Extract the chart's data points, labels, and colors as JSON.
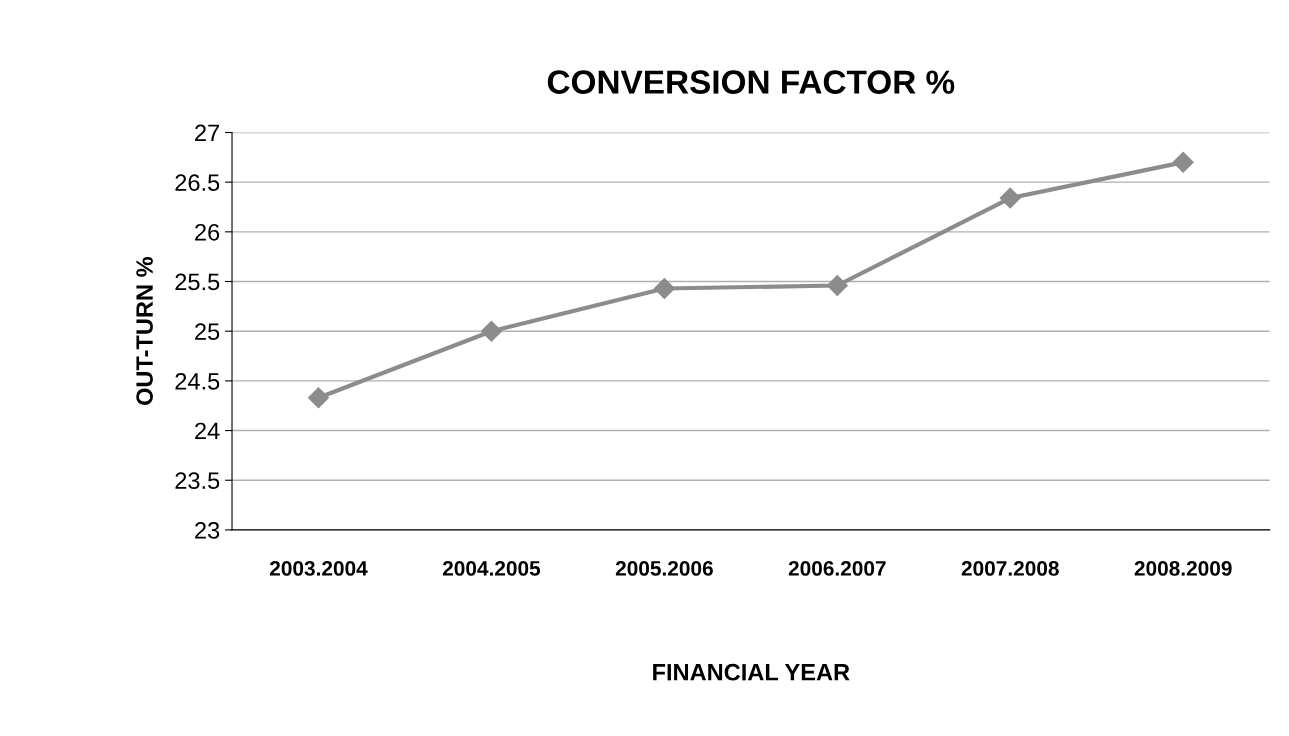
{
  "chart_data": {
    "type": "line",
    "title": "CONVERSION FACTOR %",
    "xlabel": "FINANCIAL YEAR",
    "ylabel": "OUT-TURN %",
    "categories": [
      "2003.2004",
      "2004.2005",
      "2005.2006",
      "2006.2007",
      "2007.2008",
      "2008.2009"
    ],
    "series": [
      {
        "color": "#8c8c8c",
        "values": [
          24.33,
          25.0,
          25.43,
          25.46,
          26.34,
          26.7
        ]
      }
    ],
    "ylim": [
      23,
      27
    ],
    "yticks": [
      23,
      23.5,
      24,
      24.5,
      25,
      25.5,
      26,
      26.5,
      27
    ],
    "grid": "y",
    "marker": "diamond",
    "line_style": "solid",
    "legend": false
  }
}
